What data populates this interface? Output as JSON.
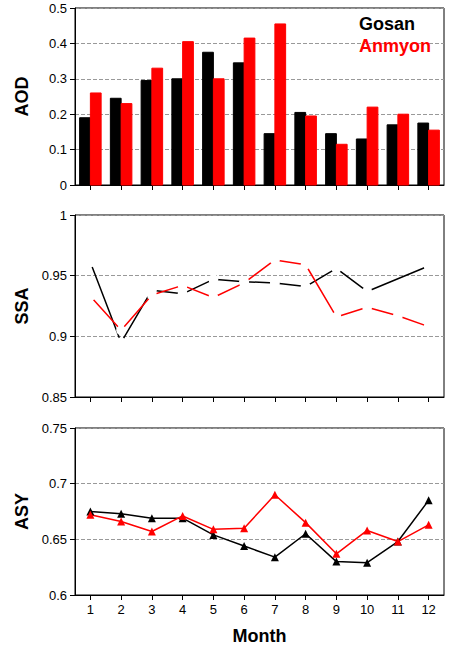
{
  "chart_data": [
    {
      "type": "bar",
      "y_label": "AOD",
      "categories": [
        1,
        2,
        3,
        4,
        5,
        6,
        7,
        8,
        9,
        10,
        11,
        12
      ],
      "series": [
        {
          "name": "Gosan",
          "color": "#000000",
          "values": [
            0.19,
            0.245,
            0.295,
            0.3,
            0.375,
            0.345,
            0.145,
            0.205,
            0.145,
            0.13,
            0.17,
            0.175
          ]
        },
        {
          "name": "Anmyon",
          "color": "#ff0000",
          "values": [
            0.26,
            0.23,
            0.33,
            0.405,
            0.3,
            0.415,
            0.455,
            0.195,
            0.115,
            0.22,
            0.2,
            0.155
          ]
        }
      ],
      "ylim": [
        0,
        0.5
      ],
      "yticks": [
        0,
        0.1,
        0.2,
        0.3,
        0.4,
        0.5
      ],
      "grid": true,
      "legend": "upper right",
      "tick_labels": "y"
    },
    {
      "type": "line",
      "y_label": "SSA",
      "categories": [
        1,
        2,
        3,
        4,
        5,
        6,
        7,
        8,
        9,
        10,
        11,
        12
      ],
      "series": [
        {
          "name": "Gosan",
          "color": "#000000",
          "marker": "circle_open",
          "values": [
            0.961,
            0.895,
            0.938,
            0.935,
            0.947,
            0.945,
            0.944,
            0.941,
            0.956,
            0.937,
            null,
            0.958
          ]
        },
        {
          "name": "Anmyon",
          "color": "#ff0000",
          "marker": "circle_open",
          "values": [
            0.933,
            0.905,
            0.934,
            0.942,
            0.932,
            0.944,
            0.963,
            0.959,
            0.916,
            0.924,
            0.917,
            0.908
          ]
        }
      ],
      "ylim": [
        0.85,
        1
      ],
      "yticks": [
        0.85,
        0.9,
        0.95,
        1
      ],
      "grid": true,
      "tick_labels": "y"
    },
    {
      "type": "line",
      "y_label": "ASY",
      "x_label": "Month",
      "categories": [
        1,
        2,
        3,
        4,
        5,
        6,
        7,
        8,
        9,
        10,
        11,
        12
      ],
      "series": [
        {
          "name": "Gosan",
          "color": "#000000",
          "marker": "triangle",
          "values": [
            0.675,
            0.673,
            0.669,
            0.669,
            0.654,
            0.644,
            0.634,
            0.655,
            0.63,
            0.629,
            0.648,
            0.685
          ]
        },
        {
          "name": "Anmyon",
          "color": "#ff0000",
          "marker": "triangle",
          "values": [
            0.672,
            0.666,
            0.657,
            0.671,
            0.659,
            0.66,
            0.69,
            0.665,
            0.637,
            0.658,
            0.648,
            0.663
          ]
        }
      ],
      "ylim": [
        0.6,
        0.75
      ],
      "yticks": [
        0.6,
        0.65,
        0.7,
        0.75
      ],
      "grid": true
    }
  ]
}
